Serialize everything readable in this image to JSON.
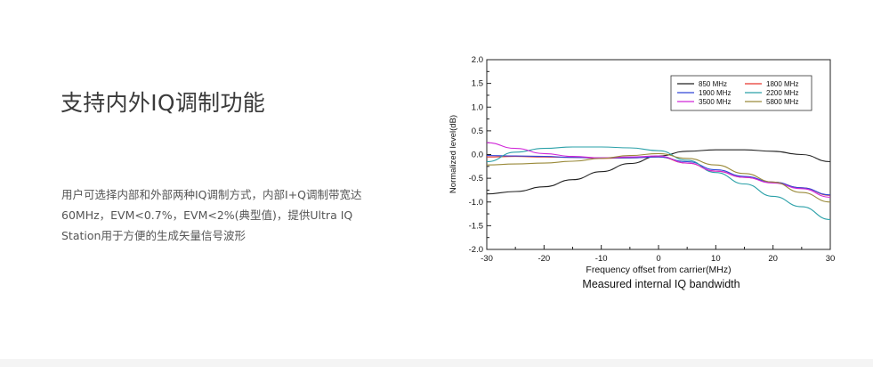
{
  "page": {
    "title": "支持内外IQ调制功能",
    "description_lines": [
      "用户可选择内部和外部两种IQ调制方式，内部I+Q调制带宽达",
      "60MHz，EVM<0.7%，EVM<2%(典型值)，提供Ultra IQ",
      "Station用于方便的生成矢量信号波形"
    ]
  },
  "chart_data": {
    "type": "line",
    "title": "",
    "xlabel": "Frequency offset from carrier(MHz)",
    "ylabel": "Normalized level(dB)",
    "caption": "Measured internal IQ bandwidth",
    "xlim": [
      -30,
      30
    ],
    "ylim": [
      -2.0,
      2.0
    ],
    "x_ticks": [
      -30,
      -20,
      -10,
      0,
      10,
      20,
      30
    ],
    "x_tick_labels": [
      "-30",
      "-20",
      "-10",
      "0",
      "10",
      "20",
      "30"
    ],
    "y_ticks": [
      2.0,
      1.5,
      1.0,
      0.5,
      0.0,
      -0.5,
      -1.0,
      -1.5,
      -2.0
    ],
    "y_tick_labels": [
      "2.0",
      "1.5",
      "1.0",
      "0.5",
      "0.0",
      "-0.5",
      "-1.0",
      "-1.5",
      "-2.0"
    ],
    "grid": false,
    "legend_position": "top-right",
    "series": [
      {
        "name": "850 MHz",
        "color": "#222222",
        "x": [
          -30,
          -25,
          -20,
          -15,
          -10,
          -5,
          0,
          5,
          10,
          15,
          20,
          25,
          30
        ],
        "y": [
          -0.83,
          -0.78,
          -0.68,
          -0.53,
          -0.36,
          -0.19,
          -0.03,
          0.07,
          0.1,
          0.1,
          0.07,
          0.0,
          -0.15
        ]
      },
      {
        "name": "1800 MHz",
        "color": "#e8362e",
        "x": [
          -30,
          -25,
          -20,
          -15,
          -10,
          -5,
          0,
          5,
          10,
          15,
          20,
          25,
          30
        ],
        "y": [
          -0.05,
          -0.04,
          -0.05,
          -0.06,
          -0.08,
          -0.07,
          -0.05,
          -0.18,
          -0.35,
          -0.48,
          -0.58,
          -0.7,
          -0.86
        ]
      },
      {
        "name": "1900 MHz",
        "color": "#3246d8",
        "x": [
          -30,
          -25,
          -20,
          -15,
          -10,
          -5,
          0,
          5,
          10,
          15,
          20,
          25,
          30
        ],
        "y": [
          -0.02,
          -0.03,
          -0.04,
          -0.06,
          -0.07,
          -0.07,
          -0.05,
          -0.15,
          -0.32,
          -0.46,
          -0.58,
          -0.7,
          -0.85
        ]
      },
      {
        "name": "2200 MHz",
        "color": "#2aa0a8",
        "x": [
          -30,
          -25,
          -20,
          -15,
          -10,
          -5,
          0,
          5,
          10,
          15,
          20,
          25,
          30
        ],
        "y": [
          -0.15,
          0.05,
          0.13,
          0.16,
          0.16,
          0.14,
          0.08,
          -0.12,
          -0.38,
          -0.62,
          -0.88,
          -1.1,
          -1.37
        ]
      },
      {
        "name": "3500 MHz",
        "color": "#d028d8",
        "x": [
          -30,
          -25,
          -20,
          -15,
          -10,
          -5,
          0,
          5,
          10,
          15,
          20,
          25,
          30
        ],
        "y": [
          0.25,
          0.13,
          0.02,
          -0.04,
          -0.07,
          -0.05,
          -0.03,
          -0.18,
          -0.35,
          -0.48,
          -0.6,
          -0.72,
          -0.9
        ]
      },
      {
        "name": "5800 MHz",
        "color": "#9a8a3a",
        "x": [
          -30,
          -25,
          -20,
          -15,
          -10,
          -5,
          0,
          5,
          10,
          15,
          20,
          25,
          30
        ],
        "y": [
          -0.22,
          -0.2,
          -0.18,
          -0.14,
          -0.08,
          -0.02,
          0.02,
          -0.08,
          -0.22,
          -0.4,
          -0.58,
          -0.8,
          -1.0
        ]
      }
    ]
  }
}
